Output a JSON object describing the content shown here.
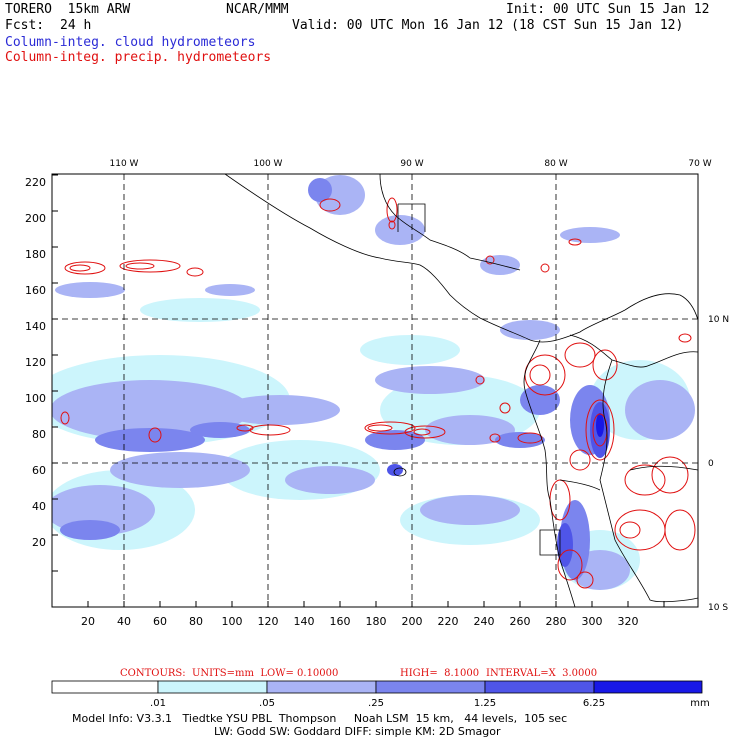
{
  "header": {
    "model": "TORERO  15km ARW",
    "org": "NCAR/MMM",
    "init": "Init: 00 UTC Sun 15 Jan 12",
    "fcst_label": "Fcst:",
    "fcst_value": "24 h",
    "valid": "Valid: 00 UTC Mon 16 Jan 12 (18 CST Sun 15 Jan 12)",
    "legend_cloud": "Column-integ. cloud hydrometeors",
    "legend_precip": "Column-integ. precip. hydrometeors"
  },
  "colors": {
    "cloud_series": "#2b2bd6",
    "precip_series": "#e01010",
    "fill_levels": [
      "#ffffff",
      "#ccf5fc",
      "#aab4f5",
      "#7b85ee",
      "#4f55e8",
      "#1818e6"
    ]
  },
  "map": {
    "lon_labels": [
      "110 W",
      "100 W",
      "90 W",
      "80 W",
      "70 W"
    ],
    "lat_labels": [
      "10 N",
      "0",
      "10 S"
    ],
    "x_ticks": [
      "20",
      "40",
      "60",
      "80",
      "100",
      "120",
      "140",
      "160",
      "180",
      "200",
      "220",
      "240",
      "260",
      "280",
      "300",
      "320"
    ],
    "y_ticks": [
      "220",
      "200",
      "180",
      "160",
      "140",
      "120",
      "100",
      "80",
      "60",
      "40",
      "20"
    ]
  },
  "contours": {
    "units": "CONTOURS:  UNITS=mm  LOW= 0.10000",
    "high": "HIGH=  8.1000",
    "interval": "INTERVAL=X  3.0000"
  },
  "colorbar": {
    "labels": [
      ".01",
      ".05",
      ".25",
      "1.25",
      "6.25"
    ],
    "unit": "mm"
  },
  "model_info": {
    "line1": "Model Info: V3.3.1   Tiedtke YSU PBL  Thompson     Noah LSM  15 km,   44 levels,  105 sec",
    "line2": "LW: Godd SW: Goddard DIFF: simple KM: 2D Smagor"
  }
}
